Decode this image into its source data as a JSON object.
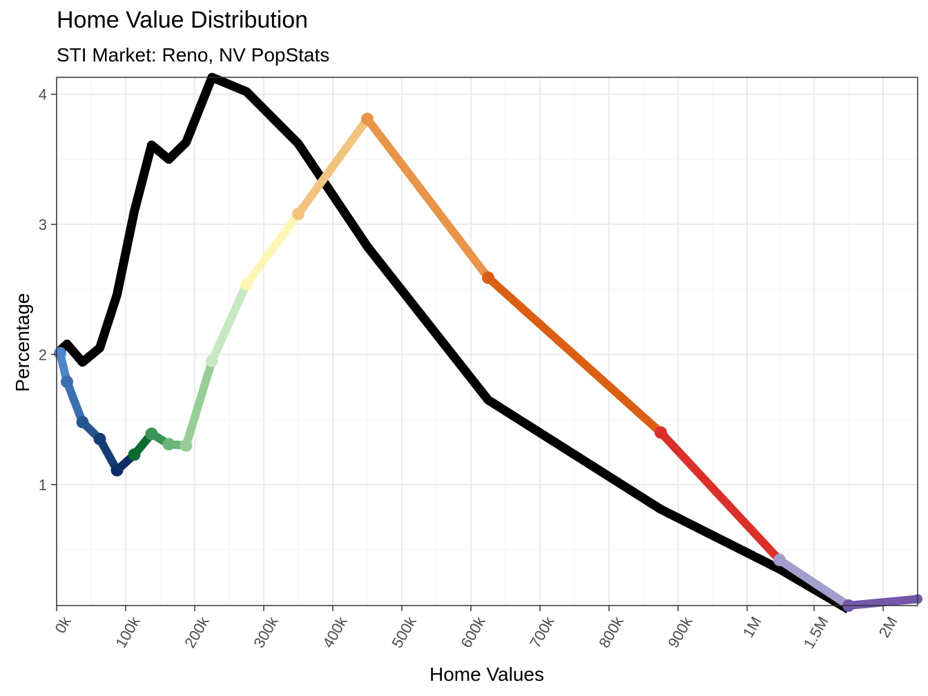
{
  "chart_data": {
    "type": "line",
    "title": "Home Value Distribution",
    "subtitle": "STI Market: Reno, NV PopStats",
    "xlabel": "Home Values",
    "ylabel": "Percentage",
    "x_ticks": [
      "0k",
      "100k",
      "200k",
      "300k",
      "400k",
      "500k",
      "600k",
      "700k",
      "800k",
      "900k",
      "1M",
      "1.5M",
      "2M"
    ],
    "y_ticks": [
      1,
      2,
      3,
      4
    ],
    "ylim": [
      0.07,
      4.13
    ],
    "grid": true,
    "legend": "none",
    "series": [
      {
        "color": "#000000",
        "x": [
          5000,
          15000,
          37500,
          62500,
          87500,
          112500,
          137500,
          162500,
          187500,
          225000,
          275000,
          350000,
          450000,
          625000,
          875000,
          1250000,
          1750000
        ],
        "values": [
          2.03,
          2.08,
          1.94,
          2.05,
          2.46,
          3.1,
          3.61,
          3.5,
          3.63,
          4.13,
          4.02,
          3.62,
          2.83,
          1.65,
          0.81,
          0.35,
          0.04
        ]
      },
      {
        "color": "#2d6bb5",
        "x": [
          5000,
          15000,
          37500,
          62500,
          87500,
          112500,
          137500,
          162500,
          187500,
          225000,
          275000,
          350000,
          450000,
          625000,
          875000,
          1250000,
          1750000,
          2250000
        ],
        "values": [
          2.01,
          1.79,
          1.48,
          1.35,
          1.11,
          1.23,
          1.39,
          1.31,
          1.3,
          1.95,
          2.54,
          3.08,
          3.81,
          2.59,
          1.4,
          0.42,
          0.07,
          0.12
        ],
        "segment_colors": [
          "#4f85c9",
          "#3c6fb0",
          "#28548f",
          "#153d75",
          "#0d2f63",
          "#0b6b30",
          "#3a9457",
          "#6cb47b",
          "#98cd98",
          "#c8e8c4",
          "#fff6b6",
          "#f2c47f",
          "#e8954a",
          "#db5f12",
          "#d9302a",
          "#a19fcb",
          "#7457a8"
        ]
      }
    ]
  }
}
